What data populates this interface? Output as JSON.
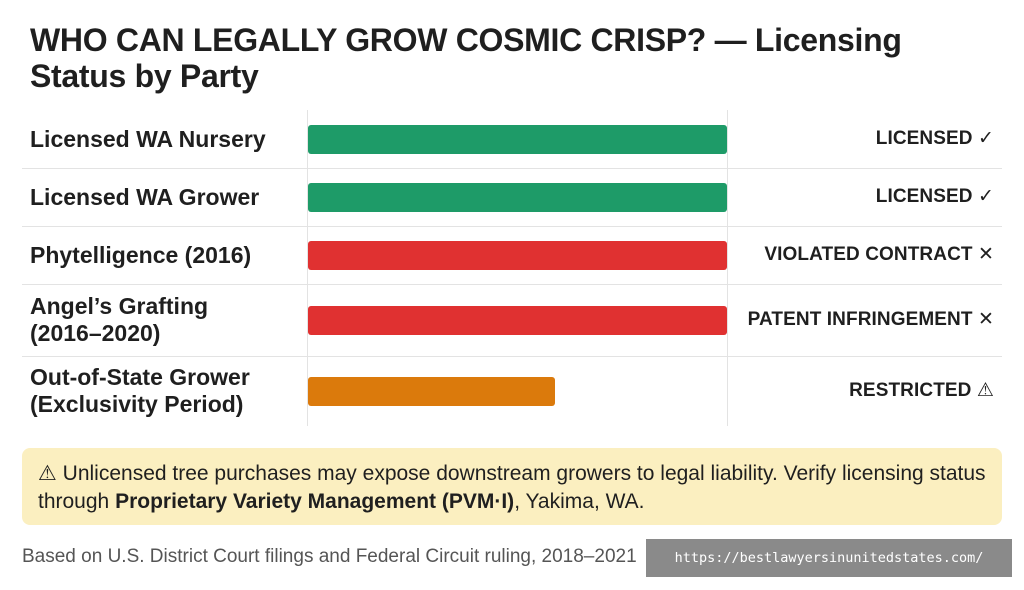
{
  "title": "WHO CAN LEGALLY GROW COSMIC CRISP? — Licensing Status by Party",
  "colors": {
    "licensed": "#1e9b68",
    "violation": "#e03131",
    "restricted": "#db7a0c",
    "note_bg": "#fbefc0",
    "url_bg": "#8a8a8a"
  },
  "chart_data": {
    "type": "bar",
    "orientation": "horizontal",
    "title": "WHO CAN LEGALLY GROW COSMIC CRISP? — Licensing Status by Party",
    "categories": [
      "Licensed WA Nursery",
      "Licensed WA Grower",
      "Phytelligence (2016)",
      "Angel’s Grafting\n(2016–2020)",
      "Out-of-State Grower\n(Exclusivity Period)"
    ],
    "values": [
      1.0,
      1.0,
      1.0,
      1.0,
      0.59
    ],
    "statuses": [
      {
        "text": "LICENSED ✓",
        "color_key": "licensed"
      },
      {
        "text": "LICENSED ✓",
        "color_key": "licensed"
      },
      {
        "text": "VIOLATED CONTRACT ✕",
        "color_key": "violation"
      },
      {
        "text": "PATENT INFRINGEMENT ✕",
        "color_key": "violation"
      },
      {
        "text": "RESTRICTED ⚠",
        "color_key": "restricted"
      }
    ],
    "grid": true
  },
  "note": {
    "prefix": "⚠ Unlicensed tree purchases may expose downstream growers to legal liability. Verify licensing status through ",
    "bold": "Proprietary Variety Management (PVM·I)",
    "suffix": ", Yakima, WA."
  },
  "source": "Based on U.S. District Court filings and Federal Circuit ruling, 2018–2021",
  "url": "https://bestlawyersinunitedstates.com/"
}
